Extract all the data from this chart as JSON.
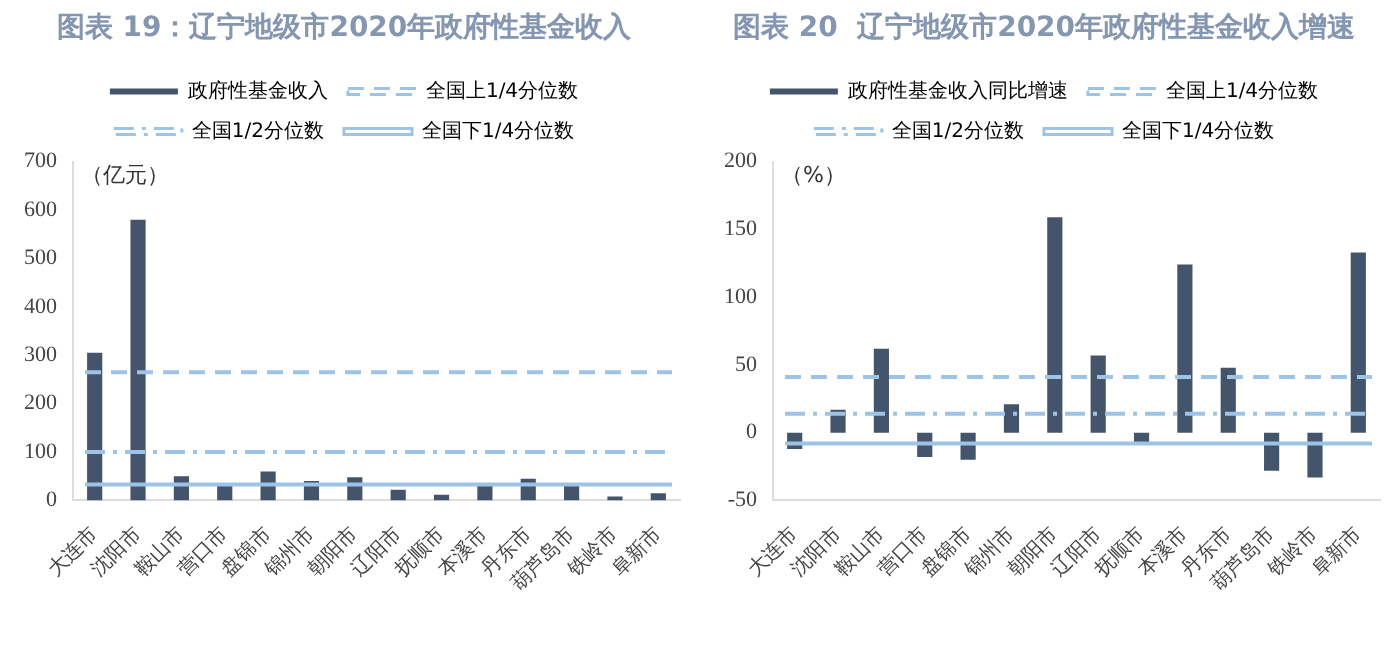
{
  "chart_data": [
    {
      "type": "bar",
      "title": "图表 19：辽宁地级市2020年政府性基金收入",
      "ylabel": "（亿元）",
      "categories": [
        "大连市",
        "沈阳市",
        "鞍山市",
        "营口市",
        "盘锦市",
        "锦州市",
        "朝阳市",
        "辽阳市",
        "抚顺市",
        "本溪市",
        "丹东市",
        "葫芦岛市",
        "铁岭市",
        "阜新市"
      ],
      "series": [
        {
          "name": "政府性基金收入",
          "color": "#44546a",
          "values": [
            305,
            580,
            50,
            30,
            60,
            40,
            48,
            22,
            12,
            30,
            45,
            30,
            8,
            15
          ]
        }
      ],
      "ylim": [
        0,
        700
      ],
      "yticks": [
        0,
        100,
        200,
        300,
        400,
        500,
        600,
        700
      ],
      "ref_lines": [
        {
          "axis": "y",
          "value": 265,
          "label": "全国上1/4分位数",
          "color": "#9dc3e6",
          "line_style": "dashed"
        },
        {
          "axis": "y",
          "value": 100,
          "label": "全国1/2分位数",
          "color": "#9dc3e6",
          "line_style": "dashdot"
        },
        {
          "axis": "y",
          "value": 33,
          "label": "全国下1/4分位数",
          "color": "#9dc3e6",
          "line_style": "solid"
        }
      ],
      "legend": "top",
      "grid": false
    },
    {
      "type": "bar",
      "title": "图表 20  辽宁地级市2020年政府性基金收入增速",
      "ylabel": "（%）",
      "categories": [
        "大连市",
        "沈阳市",
        "鞍山市",
        "营口市",
        "盘锦市",
        "锦州市",
        "朝阳市",
        "辽阳市",
        "抚顺市",
        "本溪市",
        "丹东市",
        "葫芦岛市",
        "铁岭市",
        "阜新市"
      ],
      "series": [
        {
          "name": "政府性基金收入同比增速",
          "color": "#44546a",
          "values": [
            -12,
            17,
            62,
            -18,
            -20,
            21,
            159,
            57,
            -7,
            124,
            48,
            -28,
            -33,
            133
          ]
        }
      ],
      "ylim": [
        -50,
        200
      ],
      "yticks": [
        -50,
        0,
        50,
        100,
        150,
        200
      ],
      "ref_lines": [
        {
          "axis": "y",
          "value": 41,
          "label": "全国上1/4分位数",
          "color": "#9dc3e6",
          "line_style": "dashed"
        },
        {
          "axis": "y",
          "value": 14,
          "label": "全国1/2分位数",
          "color": "#9dc3e6",
          "line_style": "dashdot"
        },
        {
          "axis": "y",
          "value": -8,
          "label": "全国下1/4分位数",
          "color": "#9dc3e6",
          "line_style": "solid"
        }
      ],
      "legend": "top",
      "grid": false
    }
  ]
}
